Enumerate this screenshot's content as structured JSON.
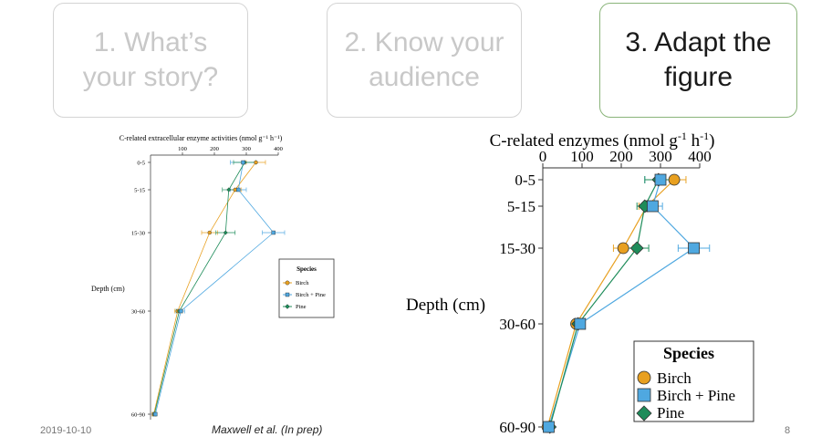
{
  "steps": [
    {
      "line1": "1. What’s",
      "line2": "your story?"
    },
    {
      "line1": "2. Know your",
      "line2": "audience"
    },
    {
      "line1": "3. Adapt the",
      "line2": "figure"
    }
  ],
  "footer": {
    "date": "2019-10-10",
    "citation": "Maxwell et al. (In prep)",
    "page": "8"
  },
  "colors": {
    "birch": "#E8A020",
    "birch_pine": "#4FA8E0",
    "pine": "#1E8C5A",
    "arrow_gray": "#b0b0b0",
    "arrow_green": "#a9cf95"
  },
  "chart_data": [
    {
      "type": "line",
      "title": "C-related extracellular enzyme activities",
      "title_units": "(nmol g⁻¹ h⁻¹)",
      "xlabel_position": "top",
      "ylabel": "Depth (cm)",
      "xlim": [
        0,
        400
      ],
      "xticks": [
        100,
        200,
        300,
        400
      ],
      "categories": [
        "0-5",
        "5-15",
        "15-30",
        "30-60",
        "60-90"
      ],
      "legend": {
        "title": "Species",
        "entries": [
          "Birch",
          "Birch + Pine",
          "Pine"
        ]
      },
      "series": [
        {
          "name": "Birch",
          "values": [
            330,
            265,
            185,
            85,
            10
          ],
          "errors": [
            30,
            20,
            25,
            10,
            5
          ]
        },
        {
          "name": "Birch + Pine",
          "values": [
            290,
            275,
            385,
            95,
            15
          ],
          "errors": [
            40,
            25,
            35,
            12,
            5
          ]
        },
        {
          "name": "Pine",
          "values": [
            295,
            245,
            235,
            90,
            12
          ],
          "errors": [
            35,
            20,
            30,
            10,
            5
          ]
        }
      ]
    },
    {
      "type": "line",
      "title": "C-related enzymes (nmol g",
      "title_sup1": "-1",
      "title_mid": " h",
      "title_sup2": "-1",
      "title_end": ")",
      "ylabel": "Depth (cm)",
      "xlim": [
        0,
        400
      ],
      "xticks": [
        "0",
        "100",
        "200",
        "300",
        "400"
      ],
      "categories": [
        "0-5",
        "5-15",
        "15-30",
        "30-60",
        "60-90"
      ],
      "legend": {
        "title": "Species",
        "entries": [
          "Birch",
          "Birch + Pine",
          "Pine"
        ]
      },
      "series": [
        {
          "name": "Birch",
          "values": [
            335,
            265,
            205,
            85,
            12
          ],
          "errors": [
            30,
            20,
            25,
            10,
            5
          ]
        },
        {
          "name": "Birch + Pine",
          "values": [
            300,
            280,
            385,
            95,
            15
          ],
          "errors": [
            40,
            25,
            40,
            12,
            5
          ]
        },
        {
          "name": "Pine",
          "values": [
            295,
            260,
            240,
            90,
            18
          ],
          "errors": [
            35,
            20,
            30,
            10,
            5
          ]
        }
      ]
    }
  ]
}
